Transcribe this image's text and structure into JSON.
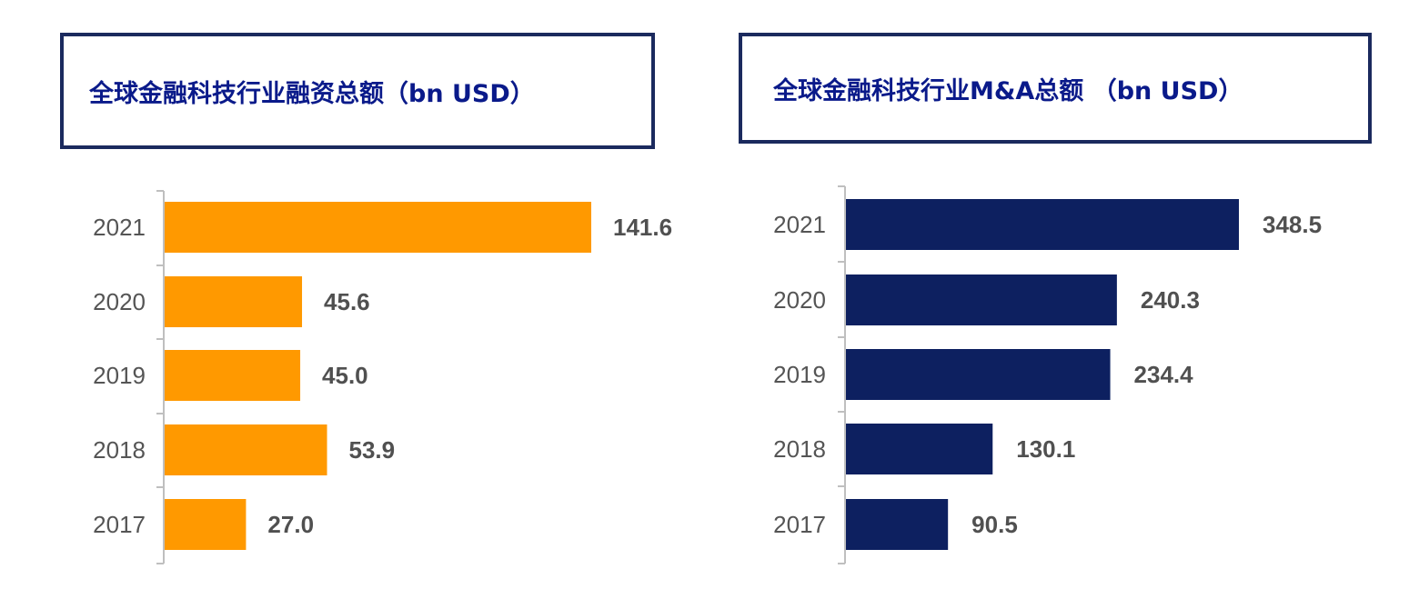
{
  "chart_data": [
    {
      "type": "bar",
      "orientation": "horizontal",
      "title": "全球金融科技行业融资总额（bn USD）",
      "categories": [
        "2021",
        "2020",
        "2019",
        "2018",
        "2017"
      ],
      "values": [
        141.6,
        45.6,
        45.0,
        53.9,
        27.0
      ],
      "value_labels": [
        "141.6",
        "45.6",
        "45.0",
        "53.9",
        "27.0"
      ],
      "color": "#ff9900",
      "grid": false,
      "legend": "none"
    },
    {
      "type": "bar",
      "orientation": "horizontal",
      "title": "全球金融科技行业M&A总额 （bn USD）",
      "categories": [
        "2021",
        "2020",
        "2019",
        "2018",
        "2017"
      ],
      "values": [
        348.5,
        240.3,
        234.4,
        130.1,
        90.5
      ],
      "value_labels": [
        "348.5",
        "240.3",
        "234.4",
        "130.1",
        "90.5"
      ],
      "color": "#0d2060",
      "grid": false,
      "legend": "none"
    }
  ]
}
